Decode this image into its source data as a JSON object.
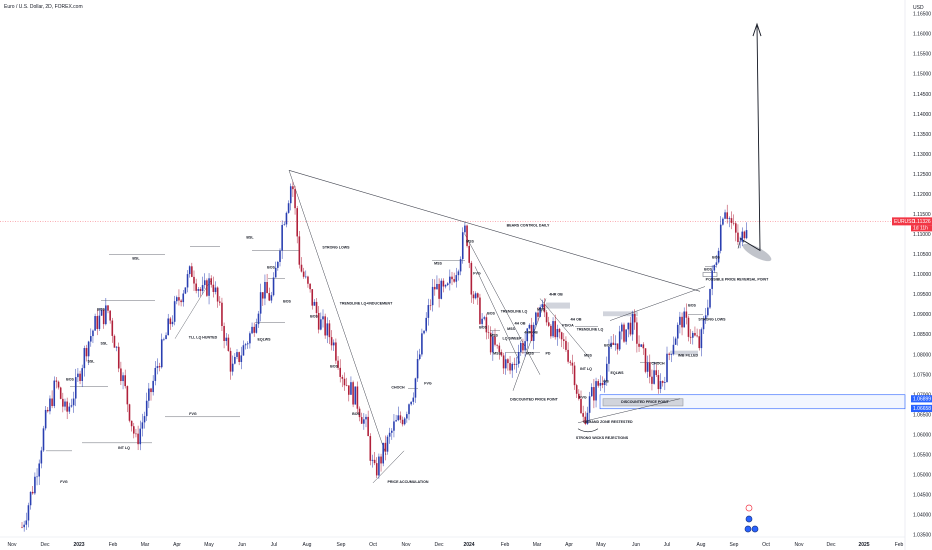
{
  "symbol_title": "Euro / U.S. Dollar, 2D, FOREX.com",
  "currency": "USD",
  "chart_data": {
    "type": "candlestick",
    "title": "",
    "y_ticks": [
      1.035,
      1.04,
      1.045,
      1.05,
      1.055,
      1.06,
      1.065,
      1.07,
      1.075,
      1.08,
      1.085,
      1.09,
      1.095,
      1.1,
      1.105,
      1.11,
      1.115,
      1.12,
      1.125,
      1.13,
      1.135,
      1.14,
      1.145,
      1.15,
      1.155,
      1.16,
      1.165
    ],
    "y_tick_labels": [
      "1.03500",
      "1.04000",
      "1.04500",
      "1.05000",
      "1.05500",
      "1.06000",
      "1.06500",
      "1.07000",
      "1.07500",
      "1.08000",
      "1.08500",
      "1.09000",
      "1.09500",
      "1.10000",
      "1.10500",
      "1.11000",
      "1.11500",
      "1.12000",
      "1.12500",
      "1.13000",
      "1.13500",
      "1.14000",
      "1.14500",
      "1.15000",
      "1.15500",
      "1.16000",
      "1.16500"
    ],
    "ylim": [
      1.0345,
      1.1685
    ],
    "x_ticks": [
      {
        "x": 12,
        "label": "Nov"
      },
      {
        "x": 45,
        "label": "Dec"
      },
      {
        "x": 79,
        "label": "2023"
      },
      {
        "x": 113,
        "label": "Feb"
      },
      {
        "x": 145,
        "label": "Mar"
      },
      {
        "x": 177,
        "label": "Apr"
      },
      {
        "x": 209,
        "label": "May"
      },
      {
        "x": 242,
        "label": "Jun"
      },
      {
        "x": 274,
        "label": "Jul"
      },
      {
        "x": 307,
        "label": "Aug"
      },
      {
        "x": 341,
        "label": "Sep"
      },
      {
        "x": 373,
        "label": "Oct"
      },
      {
        "x": 406,
        "label": "Nov"
      },
      {
        "x": 439,
        "label": "Dec"
      },
      {
        "x": 469,
        "label": "2024"
      },
      {
        "x": 505,
        "label": "Feb"
      },
      {
        "x": 537,
        "label": "Mar"
      },
      {
        "x": 569,
        "label": "Apr"
      },
      {
        "x": 601,
        "label": "May"
      },
      {
        "x": 636,
        "label": "Jun"
      },
      {
        "x": 667,
        "label": "Jul"
      },
      {
        "x": 701,
        "label": "Aug"
      },
      {
        "x": 734,
        "label": "Sep"
      },
      {
        "x": 766,
        "label": "Oct"
      },
      {
        "x": 799,
        "label": "Nov"
      },
      {
        "x": 831,
        "label": "Dec"
      },
      {
        "x": 864,
        "label": "2025"
      },
      {
        "x": 899,
        "label": "Feb"
      }
    ],
    "price_path": [
      [
        22,
        1.037
      ],
      [
        34,
        1.048
      ],
      [
        46,
        1.064
      ],
      [
        56,
        1.073
      ],
      [
        66,
        1.065
      ],
      [
        76,
        1.072
      ],
      [
        86,
        1.082
      ],
      [
        96,
        1.088
      ],
      [
        108,
        1.091
      ],
      [
        116,
        1.082
      ],
      [
        126,
        1.07
      ],
      [
        136,
        1.058
      ],
      [
        148,
        1.068
      ],
      [
        158,
        1.078
      ],
      [
        170,
        1.088
      ],
      [
        182,
        1.096
      ],
      [
        192,
        1.101
      ],
      [
        202,
        1.095
      ],
      [
        212,
        1.099
      ],
      [
        222,
        1.088
      ],
      [
        232,
        1.076
      ],
      [
        242,
        1.081
      ],
      [
        252,
        1.086
      ],
      [
        262,
        1.096
      ],
      [
        272,
        1.094
      ],
      [
        282,
        1.112
      ],
      [
        292,
        1.124
      ],
      [
        300,
        1.102
      ],
      [
        310,
        1.095
      ],
      [
        320,
        1.088
      ],
      [
        332,
        1.084
      ],
      [
        344,
        1.074
      ],
      [
        356,
        1.069
      ],
      [
        366,
        1.062
      ],
      [
        374,
        1.05
      ],
      [
        384,
        1.056
      ],
      [
        394,
        1.062
      ],
      [
        404,
        1.065
      ],
      [
        414,
        1.072
      ],
      [
        424,
        1.086
      ],
      [
        434,
        1.097
      ],
      [
        446,
        1.095
      ],
      [
        458,
        1.103
      ],
      [
        466,
        1.112
      ],
      [
        472,
        1.096
      ],
      [
        480,
        1.09
      ],
      [
        490,
        1.083
      ],
      [
        500,
        1.08
      ],
      [
        510,
        1.076
      ],
      [
        520,
        1.082
      ],
      [
        530,
        1.085
      ],
      [
        540,
        1.092
      ],
      [
        548,
        1.089
      ],
      [
        556,
        1.084
      ],
      [
        566,
        1.082
      ],
      [
        574,
        1.076
      ],
      [
        582,
        1.063
      ],
      [
        592,
        1.07
      ],
      [
        602,
        1.074
      ],
      [
        612,
        1.082
      ],
      [
        622,
        1.085
      ],
      [
        632,
        1.088
      ],
      [
        642,
        1.08
      ],
      [
        652,
        1.074
      ],
      [
        662,
        1.073
      ],
      [
        672,
        1.083
      ],
      [
        682,
        1.089
      ],
      [
        692,
        1.085
      ],
      [
        700,
        1.082
      ],
      [
        708,
        1.094
      ],
      [
        716,
        1.104
      ],
      [
        724,
        1.118
      ],
      [
        732,
        1.112
      ],
      [
        740,
        1.107
      ],
      [
        748,
        1.115
      ]
    ],
    "annotations": [
      {
        "text": "BOS",
        "x": 70,
        "y": 1.0735
      },
      {
        "text": "BOS",
        "x": 101,
        "y": 1.091
      },
      {
        "text": "SSL",
        "x": 91,
        "y": 1.078
      },
      {
        "text": "SSL",
        "x": 104,
        "y": 1.0825
      },
      {
        "text": "BSL",
        "x": 136,
        "y": 1.1038
      },
      {
        "text": "BSL",
        "x": 250,
        "y": 1.109
      },
      {
        "text": "FVG",
        "x": 64,
        "y": 1.048
      },
      {
        "text": "FVG",
        "x": 193,
        "y": 1.065
      },
      {
        "text": "INT LQ",
        "x": 124,
        "y": 1.0565
      },
      {
        "text": "TLL LQ HUNTED",
        "x": 203,
        "y": 1.084
      },
      {
        "text": "EQLWS",
        "x": 264,
        "y": 1.0835
      },
      {
        "text": "BOS",
        "x": 271,
        "y": 1.1015
      },
      {
        "text": "BOS",
        "x": 287,
        "y": 1.093
      },
      {
        "text": "STRONG LOWS",
        "x": 336,
        "y": 1.1065
      },
      {
        "text": "BOS",
        "x": 314,
        "y": 1.0893
      },
      {
        "text": "TRENDLINE LQ+INDUCEMENT",
        "x": 366,
        "y": 1.0925
      },
      {
        "text": "BOS",
        "x": 334,
        "y": 1.0768
      },
      {
        "text": "BOS",
        "x": 356,
        "y": 1.065
      },
      {
        "text": "FVG",
        "x": 428,
        "y": 1.0725
      },
      {
        "text": "CHOCH",
        "x": 398,
        "y": 1.0715
      },
      {
        "text": "PRICE ACCUMULATION",
        "x": 408,
        "y": 1.048
      },
      {
        "text": "BEARS CONTROL DAILY",
        "x": 528,
        "y": 1.112
      },
      {
        "text": "MSS",
        "x": 470,
        "y": 1.108
      },
      {
        "text": "MSS",
        "x": 438,
        "y": 1.1025
      },
      {
        "text": "FVG",
        "x": 477,
        "y": 1.1
      },
      {
        "text": "BOS",
        "x": 483,
        "y": 1.0865
      },
      {
        "text": "BOS",
        "x": 491,
        "y": 1.09
      },
      {
        "text": "MSS",
        "x": 494,
        "y": 1.0845
      },
      {
        "text": "MSS",
        "x": 497,
        "y": 1.08
      },
      {
        "text": "TRENDLINE LQ",
        "x": 514,
        "y": 1.0905
      },
      {
        "text": "4H OB",
        "x": 520,
        "y": 1.0875
      },
      {
        "text": "MSS",
        "x": 511,
        "y": 1.0862
      },
      {
        "text": "LQ SWEEP",
        "x": 512,
        "y": 1.0838
      },
      {
        "text": "4HR OB",
        "x": 531,
        "y": 1.0853
      },
      {
        "text": "4HR OB",
        "x": 556,
        "y": 1.0948
      },
      {
        "text": "MSS",
        "x": 541,
        "y": 1.091
      },
      {
        "text": "MSS",
        "x": 530,
        "y": 1.08
      },
      {
        "text": "PD",
        "x": 548,
        "y": 1.08
      },
      {
        "text": "DISCOUNTED PRICE POINT",
        "x": 534,
        "y": 1.0685
      },
      {
        "text": "PD/OA",
        "x": 568,
        "y": 1.087
      },
      {
        "text": "4H OB",
        "x": 576,
        "y": 1.0885
      },
      {
        "text": "TRENDLINE LQ",
        "x": 590,
        "y": 1.086
      },
      {
        "text": "BOS",
        "x": 608,
        "y": 1.082
      },
      {
        "text": "MSS",
        "x": 588,
        "y": 1.0795
      },
      {
        "text": "INT LQ",
        "x": 586,
        "y": 1.0762
      },
      {
        "text": "EQLWS",
        "x": 617,
        "y": 1.0752
      },
      {
        "text": "FVG",
        "x": 583,
        "y": 1.069
      },
      {
        "text": "OB",
        "x": 606,
        "y": 1.073
      },
      {
        "text": "CHOCH",
        "x": 658,
        "y": 1.0775
      },
      {
        "text": "DISCOUNTED PRICE POINT",
        "x": 645,
        "y": 1.068
      },
      {
        "text": "DEMAND ZONE RESTESTED",
        "x": 608,
        "y": 1.063
      },
      {
        "text": "STRONG WICKS REJECTIONS",
        "x": 602,
        "y": 1.059
      },
      {
        "text": "IMB FILLED",
        "x": 688,
        "y": 1.0795
      },
      {
        "text": "STRONG LOWS",
        "x": 712,
        "y": 1.0885
      },
      {
        "text": "BOS",
        "x": 692,
        "y": 1.092
      },
      {
        "text": "BOS",
        "x": 708,
        "y": 1.101
      },
      {
        "text": "BOS",
        "x": 716,
        "y": 1.104
      },
      {
        "text": "POSSIBLE PRICE REVERSAL POINT",
        "x": 737,
        "y": 1.0985
      }
    ],
    "price_tag": {
      "symbol": "EURUSD",
      "price": "1.11326",
      "countdown": "1d 11h",
      "y": 1.11326
    },
    "zone_tags": [
      {
        "label": "1.06899",
        "y": 1.06899
      },
      {
        "label": "1.06658",
        "y": 1.06658
      }
    ]
  }
}
